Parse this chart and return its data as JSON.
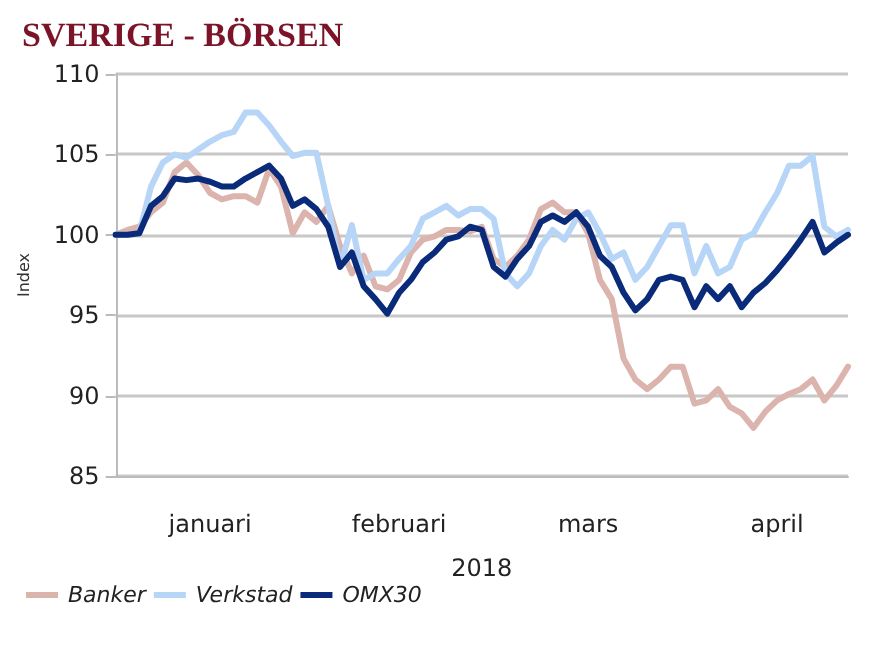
{
  "chart_data": {
    "type": "line",
    "title": "SVERIGE - BÖRSEN",
    "xlabel": "2018",
    "ylabel": "Index",
    "categories": [
      null,
      null,
      null,
      null,
      null,
      null,
      null,
      null,
      "januari",
      null,
      null,
      null,
      null,
      null,
      null,
      null,
      null,
      null,
      null,
      null,
      null,
      null,
      null,
      null,
      "februari",
      null,
      null,
      null,
      null,
      null,
      null,
      null,
      null,
      null,
      null,
      null,
      null,
      null,
      null,
      null,
      "mars",
      null,
      null,
      null,
      null,
      null,
      null,
      null,
      null,
      null,
      null,
      null,
      null,
      null,
      null,
      null,
      "april",
      null,
      null,
      null,
      null,
      null,
      null
    ],
    "series": [
      {
        "name": "Banker",
        "color": "#dcb4ae",
        "values": [
          100,
          100.3,
          100.5,
          101.4,
          102,
          103.9,
          104.5,
          103.7,
          102.6,
          102.2,
          102.4,
          102.4,
          102,
          104.1,
          103,
          100.1,
          101.4,
          100.8,
          101.8,
          99.3,
          97.6,
          98.7,
          96.8,
          96.6,
          97.2,
          98.9,
          99.7,
          99.9,
          100.3,
          100.3,
          100.2,
          100.5,
          98.5,
          98,
          98.7,
          99.7,
          101.6,
          102,
          101.4,
          101.4,
          100.1,
          97.2,
          96,
          92.3,
          91,
          90.4,
          91,
          91.8,
          91.8,
          89.5,
          89.7,
          90.4,
          89.3,
          88.9,
          88,
          89,
          89.7,
          90.1,
          90.4,
          91,
          89.7,
          90.6,
          91.8
        ]
      },
      {
        "name": "Verkstad",
        "color": "#b7d5f7",
        "values": [
          100,
          100,
          100.1,
          103,
          104.5,
          105,
          104.8,
          105.3,
          105.8,
          106.2,
          106.4,
          107.6,
          107.6,
          106.8,
          105.8,
          104.9,
          105.1,
          105.1,
          101.8,
          98,
          100.6,
          97.2,
          97.6,
          97.6,
          98.5,
          99.3,
          101,
          101.4,
          101.8,
          101.2,
          101.6,
          101.6,
          101,
          97.6,
          96.8,
          97.6,
          99.3,
          100.3,
          99.7,
          101,
          101.4,
          100.1,
          98.5,
          98.9,
          97.2,
          98,
          99.3,
          100.6,
          100.6,
          97.6,
          99.3,
          97.6,
          98,
          99.7,
          100.1,
          101.4,
          102.6,
          104.3,
          104.3,
          104.9,
          100.5,
          99.9,
          100.3
        ]
      },
      {
        "name": "OMX30",
        "color": "#0a2a7a",
        "values": [
          100,
          100,
          100.1,
          101.8,
          102.4,
          103.5,
          103.4,
          103.5,
          103.3,
          103,
          103,
          103.5,
          103.9,
          104.3,
          103.5,
          101.8,
          102.2,
          101.6,
          100.5,
          98,
          98.9,
          96.8,
          96,
          95.1,
          96.4,
          97.2,
          98.3,
          98.9,
          99.7,
          99.9,
          100.5,
          100.3,
          98,
          97.4,
          98.5,
          99.3,
          100.8,
          101.2,
          100.8,
          101.4,
          100.5,
          98.7,
          98,
          96.4,
          95.3,
          96,
          97.2,
          97.4,
          97.2,
          95.5,
          96.8,
          96,
          96.8,
          95.5,
          96.4,
          97,
          97.8,
          98.7,
          99.7,
          100.8,
          98.9,
          99.5,
          100
        ]
      }
    ],
    "ylim": [
      85,
      110
    ],
    "yticks": [
      85,
      90,
      95,
      100,
      105,
      110
    ],
    "grid": "y",
    "legend": "bottom left",
    "marker": "none",
    "line_style": "solid"
  }
}
